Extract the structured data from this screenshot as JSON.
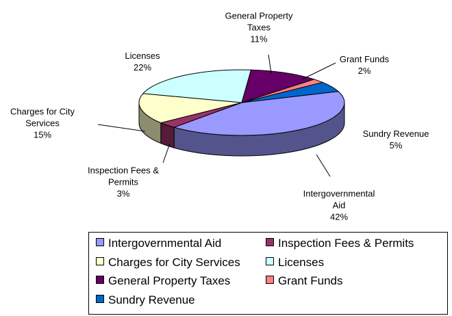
{
  "chart_data": {
    "type": "pie3d",
    "categories": [
      "Intergovernmental Aid",
      "Inspection Fees & Permits",
      "Charges for City Services",
      "Licenses",
      "General Property Taxes",
      "Grant Funds",
      "Sundry Revenue"
    ],
    "values": [
      42,
      3,
      15,
      22,
      11,
      2,
      5
    ],
    "value_labels": [
      "42%",
      "3%",
      "15%",
      "22%",
      "11%",
      "2%",
      "5%"
    ],
    "colors": [
      "#9999ff",
      "#993366",
      "#ffffcc",
      "#ccffff",
      "#660066",
      "#ff8080",
      "#0066cc"
    ],
    "legend": "bottom"
  }
}
